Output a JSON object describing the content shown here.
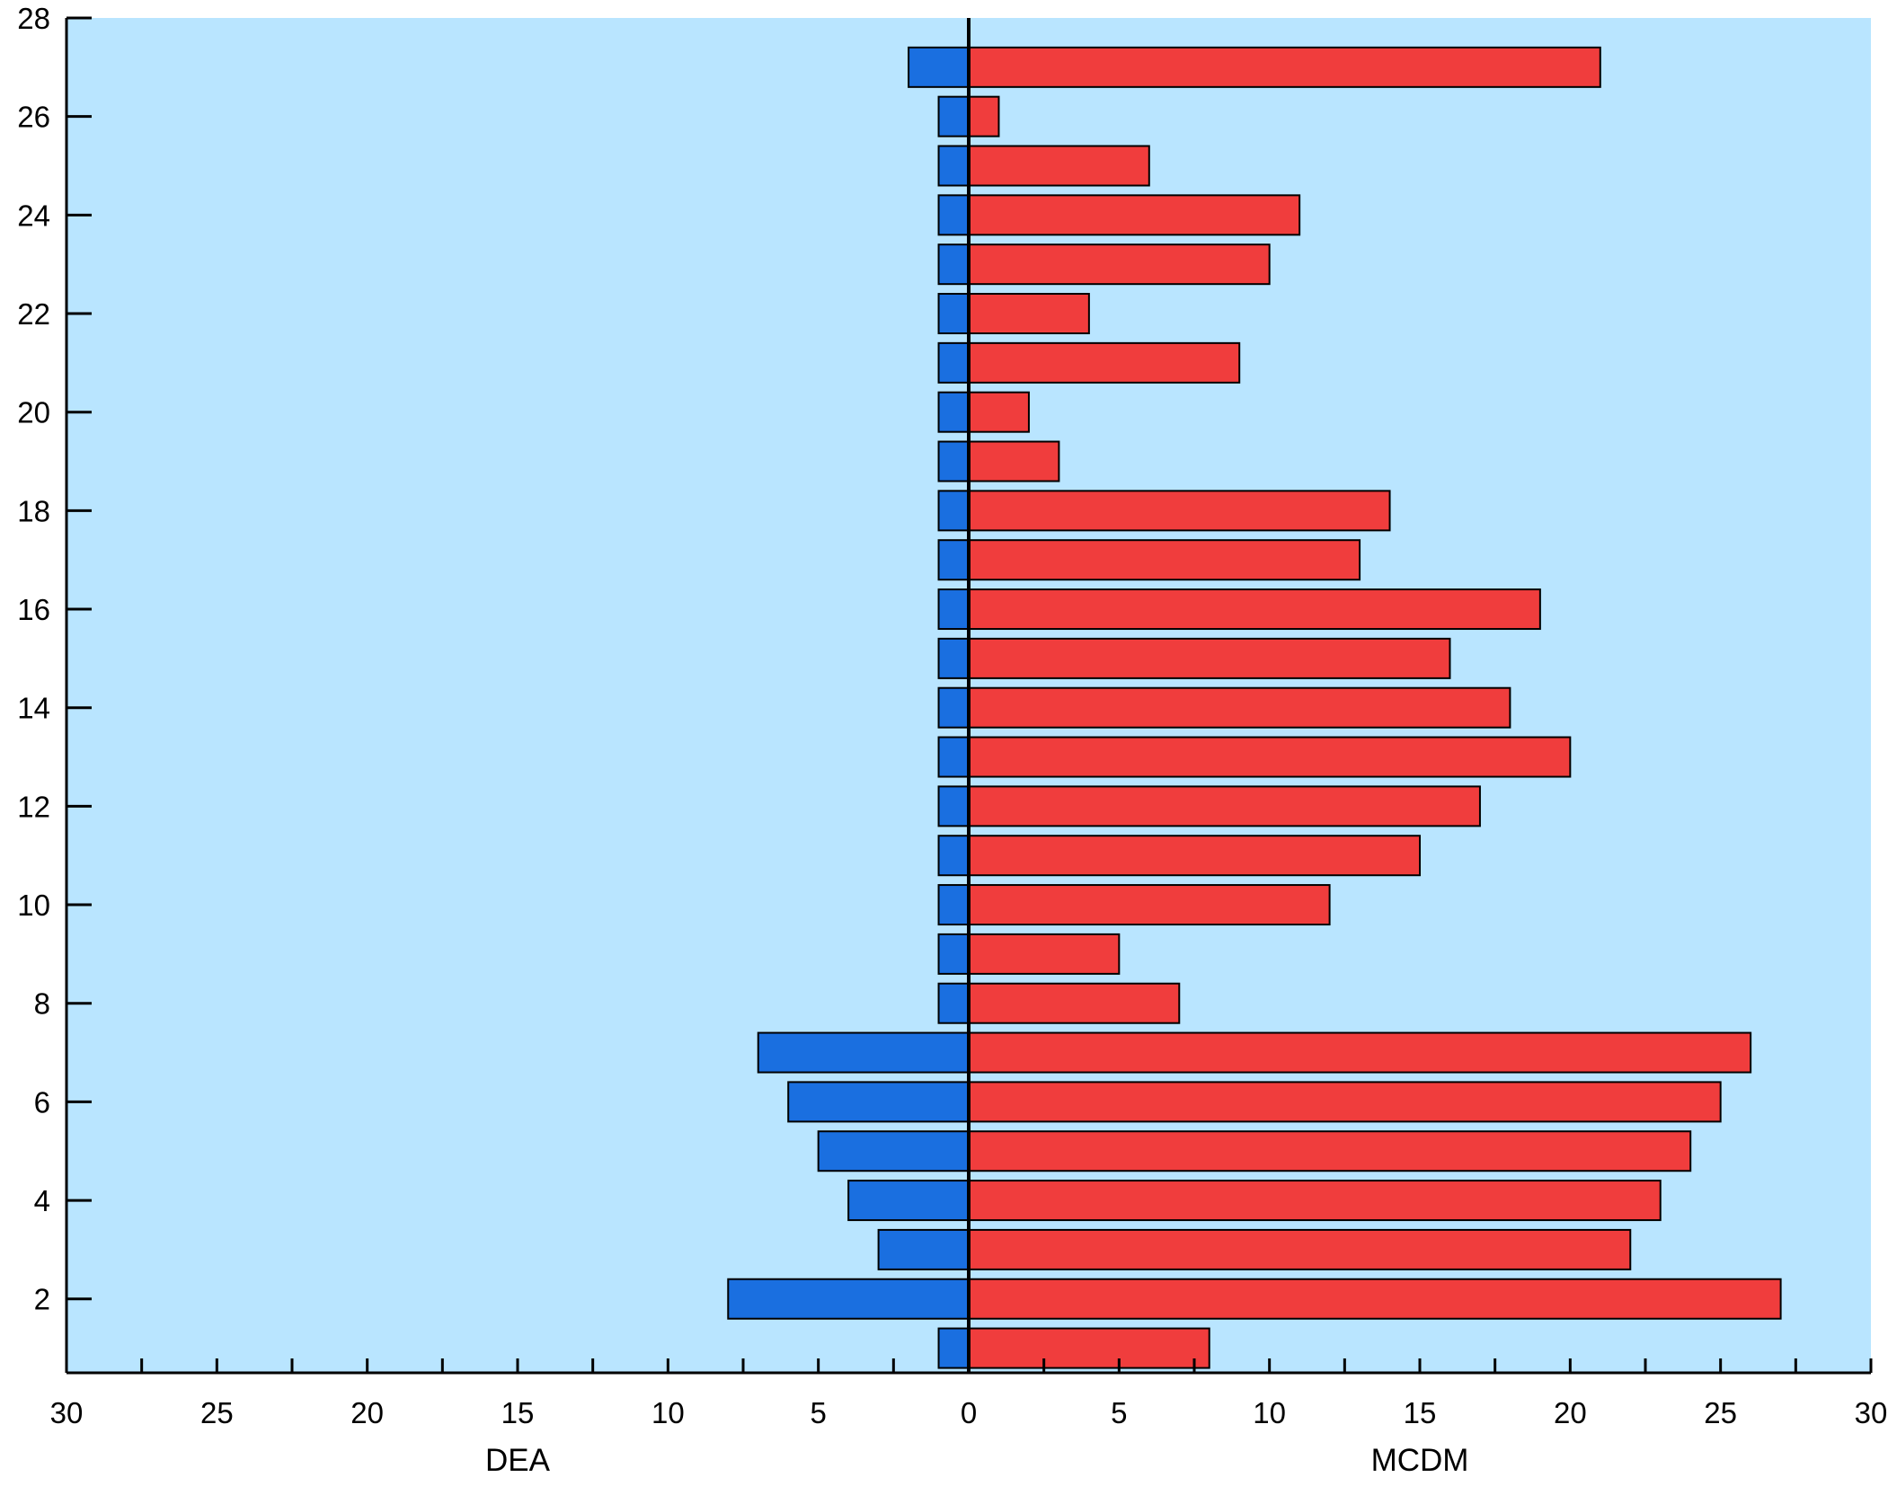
{
  "chart_data": {
    "type": "bar",
    "orientation": "horizontal",
    "layout": "butterfly",
    "categories": [
      1,
      2,
      3,
      4,
      5,
      6,
      7,
      8,
      9,
      10,
      11,
      12,
      13,
      14,
      15,
      16,
      17,
      18,
      19,
      20,
      21,
      22,
      23,
      24,
      25,
      26,
      27
    ],
    "series": [
      {
        "axis_label": "DEA",
        "side": "left",
        "color": "#1a6fe0",
        "values": [
          1,
          8,
          3,
          4,
          5,
          6,
          7,
          1,
          1,
          1,
          1,
          1,
          1,
          1,
          1,
          1,
          1,
          1,
          1,
          1,
          1,
          1,
          1,
          1,
          1,
          1,
          2
        ]
      },
      {
        "axis_label": "MCDM",
        "side": "right",
        "color": "#f03d3d",
        "values": [
          8,
          27,
          22,
          23,
          24,
          25,
          26,
          7,
          5,
          12,
          15,
          17,
          20,
          18,
          16,
          19,
          13,
          14,
          3,
          2,
          9,
          4,
          10,
          11,
          6,
          1,
          21
        ]
      }
    ],
    "xlim": [
      -30,
      30
    ],
    "x_ticks": [
      30,
      25,
      20,
      15,
      10,
      5,
      0,
      5,
      10,
      15,
      20,
      25,
      30
    ],
    "ylim": [
      0.5,
      28
    ],
    "y_ticks": [
      2,
      4,
      6,
      8,
      10,
      12,
      14,
      16,
      18,
      20,
      22,
      24,
      26,
      28
    ],
    "xlabel_left": "DEA",
    "xlabel_right": "MCDM",
    "plot_background": "#b9e5ff",
    "grid": false
  }
}
